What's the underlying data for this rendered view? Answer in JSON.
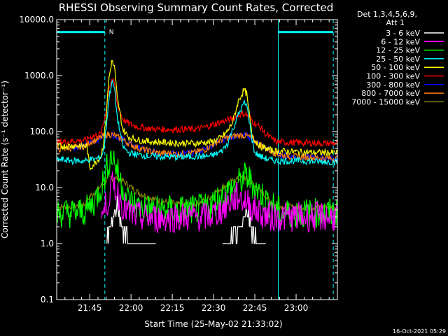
{
  "chart_data": {
    "type": "line",
    "title": "RHESSI Observing Summary Count Rates, Corrected",
    "xlabel": "Start Time (25-May-02 21:33:02)",
    "ylabel": "Corrected Count Rate (s⁻¹ detector⁻¹)",
    "y_scale": "log",
    "ylim": [
      0.1,
      10000
    ],
    "y_ticks": [
      "0.1",
      "1.0",
      "10.0",
      "100.0",
      "1000.0",
      "10000.0"
    ],
    "x_range_minutes": [
      0,
      102
    ],
    "x_ticks": [
      {
        "label": "21:45",
        "minute": 12
      },
      {
        "label": "22:00",
        "minute": 27
      },
      {
        "label": "22:15",
        "minute": 42
      },
      {
        "label": "22:30",
        "minute": 57
      },
      {
        "label": "22:45",
        "minute": 72
      },
      {
        "label": "23:00",
        "minute": 87
      }
    ],
    "legend_header": [
      "Det 1,3,4,5,6,9,",
      "Att 1"
    ],
    "legend_position": "right",
    "flag_label": "N",
    "flags": {
      "night_segments_minutes": [
        [
          0,
          17.5
        ],
        [
          80.5,
          100.5
        ]
      ],
      "vertical_markers_minutes": [
        0,
        17.5,
        80.5,
        100.5
      ],
      "flag_level": 6000
    },
    "timestamp": "16-Oct-2021 05:29",
    "x": [
      0,
      6,
      10,
      11,
      12,
      14,
      16,
      17,
      18,
      19,
      20,
      21,
      22,
      24,
      26,
      30,
      36,
      44,
      50,
      54,
      56,
      58,
      60,
      62,
      64,
      66,
      68,
      69,
      70,
      71,
      72,
      74,
      76,
      78,
      80,
      82,
      85,
      90,
      95,
      100,
      102
    ],
    "series": [
      {
        "name": "3 - 6 keV",
        "color": "#ffffff",
        "values": [
          null,
          null,
          null,
          null,
          null,
          null,
          null,
          null,
          1.0,
          1.2,
          1.8,
          3.0,
          5.0,
          1.8,
          1.0,
          1.0,
          1.0,
          null,
          null,
          null,
          null,
          null,
          1.0,
          1.0,
          1.2,
          1.8,
          3.0,
          3.5,
          2.5,
          1.8,
          1.2,
          1.0,
          1.0,
          null,
          null,
          null,
          null,
          null,
          null,
          null,
          null
        ]
      },
      {
        "name": "6 - 12 keV",
        "color": "#ff00ff",
        "values": [
          null,
          null,
          null,
          null,
          null,
          null,
          3.0,
          3.5,
          5.0,
          7.0,
          10.0,
          11.0,
          8.0,
          5.0,
          3.5,
          3.0,
          2.8,
          3.0,
          3.0,
          3.0,
          3.2,
          3.6,
          4.0,
          5.0,
          6.0,
          7.0,
          6.0,
          5.5,
          5.0,
          4.5,
          4.0,
          3.5,
          3.2,
          3.0,
          3.0,
          3.0,
          3.0,
          3.0,
          3.0,
          3.0,
          3.0
        ]
      },
      {
        "name": "12 - 25 keV",
        "color": "#00ff00",
        "values": [
          3.5,
          3.5,
          3.8,
          4.0,
          4.5,
          6.0,
          10.0,
          13.0,
          20.0,
          30.0,
          38.0,
          30.0,
          20.0,
          10.0,
          6.0,
          4.5,
          4.0,
          4.0,
          4.0,
          4.3,
          5.0,
          6.0,
          7.0,
          8.5,
          10.0,
          12.0,
          15.0,
          16.0,
          14.0,
          12.0,
          10.0,
          8.0,
          6.0,
          5.0,
          4.0,
          3.5,
          3.5,
          3.5,
          3.5,
          3.5,
          3.5
        ]
      },
      {
        "name": "25 - 50 keV",
        "color": "#00ffff",
        "values": [
          32,
          30,
          30,
          30,
          32,
          32,
          35,
          45,
          120,
          400,
          760,
          600,
          180,
          55,
          42,
          38,
          36,
          35,
          36,
          36,
          37,
          40,
          45,
          60,
          110,
          200,
          320,
          300,
          160,
          70,
          42,
          36,
          33,
          31,
          30,
          30,
          30,
          30,
          29,
          29,
          29
        ]
      },
      {
        "name": "50 - 100 keV",
        "color": "#ffff00",
        "values": [
          55,
          56,
          55,
          55,
          22,
          28,
          36,
          60,
          200,
          900,
          1800,
          1400,
          400,
          110,
          80,
          70,
          65,
          62,
          62,
          64,
          65,
          70,
          80,
          100,
          150,
          350,
          550,
          480,
          200,
          90,
          70,
          55,
          50,
          46,
          45,
          45,
          44,
          43,
          42,
          42,
          42
        ]
      },
      {
        "name": "100 - 300 keV",
        "color": "#ff0000",
        "values": [
          65,
          68,
          70,
          72,
          80,
          85,
          90,
          140,
          250,
          620,
          840,
          700,
          310,
          170,
          140,
          120,
          110,
          110,
          110,
          120,
          130,
          140,
          150,
          160,
          170,
          200,
          210,
          200,
          180,
          160,
          140,
          120,
          90,
          75,
          65,
          65,
          64,
          63,
          62,
          62,
          62
        ]
      },
      {
        "name": "300 - 800 keV",
        "color": "#0000ff",
        "values": [
          null,
          52,
          55,
          58,
          65,
          70,
          78,
          84,
          88,
          90,
          88,
          85,
          80,
          72,
          62,
          50,
          42,
          40,
          42,
          48,
          56,
          64,
          72,
          78,
          82,
          86,
          86,
          84,
          80,
          74,
          68,
          58,
          50,
          45,
          40,
          38,
          36,
          35,
          34,
          33,
          33
        ]
      },
      {
        "name": "800 - 7000 keV",
        "color": "#ff7f00",
        "values": [
          48,
          52,
          55,
          58,
          65,
          70,
          78,
          84,
          88,
          90,
          88,
          85,
          80,
          72,
          62,
          50,
          42,
          40,
          42,
          48,
          56,
          64,
          72,
          78,
          82,
          86,
          86,
          84,
          80,
          74,
          68,
          58,
          50,
          45,
          40,
          38,
          36,
          35,
          34,
          33,
          33
        ]
      },
      {
        "name": "7000 - 15000 keV",
        "color": "#808000",
        "values": [
          4.5,
          4.6,
          5.0,
          5.5,
          7.0,
          8.5,
          10.5,
          12.0,
          13.5,
          14.5,
          15.0,
          15.0,
          14.5,
          13.0,
          11.0,
          8.0,
          6.0,
          5.0,
          5.0,
          6.0,
          7.0,
          8.5,
          10.0,
          11.5,
          13.0,
          14.5,
          15.0,
          14.5,
          13.5,
          12.0,
          10.5,
          8.5,
          7.0,
          5.5,
          4.8,
          4.6,
          4.5,
          4.5,
          4.5,
          4.5,
          4.5
        ]
      }
    ]
  }
}
